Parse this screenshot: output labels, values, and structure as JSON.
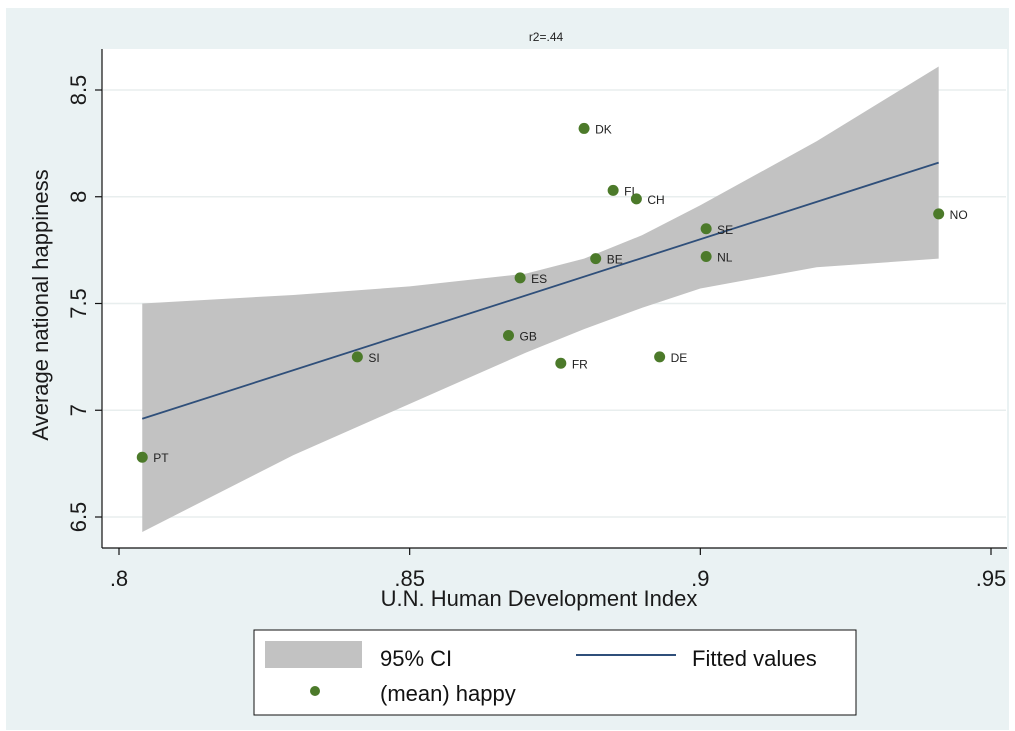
{
  "chart_data": {
    "type": "scatter",
    "title": "r2=.44",
    "xlabel": "U.N. Human Development Index",
    "ylabel": "Average national happiness",
    "xlim": [
      0.8,
      0.95
    ],
    "ylim": [
      6.5,
      8.5
    ],
    "xticks": [
      ".8",
      ".85",
      ".9",
      ".95"
    ],
    "xtick_values": [
      0.8,
      0.85,
      0.9,
      0.95
    ],
    "yticks": [
      "6.5",
      "7",
      "7.5",
      "8",
      "8.5"
    ],
    "ytick_values": [
      6.5,
      7,
      7.5,
      8,
      8.5
    ],
    "grid": true,
    "legend_placement": "bottom",
    "series": [
      {
        "name": "(mean) happy",
        "kind": "scatter",
        "color": "#4c7a2a",
        "points": [
          {
            "label": "PT",
            "x": 0.804,
            "y": 6.78
          },
          {
            "label": "SI",
            "x": 0.841,
            "y": 7.25
          },
          {
            "label": "GB",
            "x": 0.867,
            "y": 7.35
          },
          {
            "label": "ES",
            "x": 0.869,
            "y": 7.62
          },
          {
            "label": "FR",
            "x": 0.876,
            "y": 7.22
          },
          {
            "label": "DK",
            "x": 0.88,
            "y": 8.32
          },
          {
            "label": "BE",
            "x": 0.882,
            "y": 7.71
          },
          {
            "label": "FI",
            "x": 0.885,
            "y": 8.03
          },
          {
            "label": "CH",
            "x": 0.889,
            "y": 7.99
          },
          {
            "label": "DE",
            "x": 0.893,
            "y": 7.25
          },
          {
            "label": "SE",
            "x": 0.901,
            "y": 7.85
          },
          {
            "label": "NL",
            "x": 0.901,
            "y": 7.72
          },
          {
            "label": "NO",
            "x": 0.941,
            "y": 7.92
          }
        ]
      },
      {
        "name": "Fitted values",
        "kind": "line",
        "color": "#2f4f7a",
        "x": [
          0.804,
          0.941
        ],
        "y": [
          6.96,
          8.16
        ]
      },
      {
        "name": "95% CI",
        "kind": "band",
        "color": "#c2c2c2",
        "x": [
          0.804,
          0.83,
          0.85,
          0.87,
          0.88,
          0.89,
          0.9,
          0.92,
          0.941
        ],
        "upper": [
          7.5,
          7.54,
          7.58,
          7.64,
          7.71,
          7.82,
          7.96,
          8.26,
          8.61
        ],
        "lower": [
          6.43,
          6.79,
          7.03,
          7.27,
          7.38,
          7.48,
          7.57,
          7.67,
          7.71
        ]
      }
    ]
  },
  "legend": {
    "ci_label": "95% CI",
    "fit_label": "Fitted values",
    "points_label": "(mean) happy"
  },
  "colors": {
    "background": "#eaf2f3",
    "plot_area": "#ffffff",
    "grid": "#e8eeee",
    "axis": "#111111",
    "band": "#c2c2c2",
    "line": "#2f4f7a",
    "marker": "#4c7a2a"
  }
}
